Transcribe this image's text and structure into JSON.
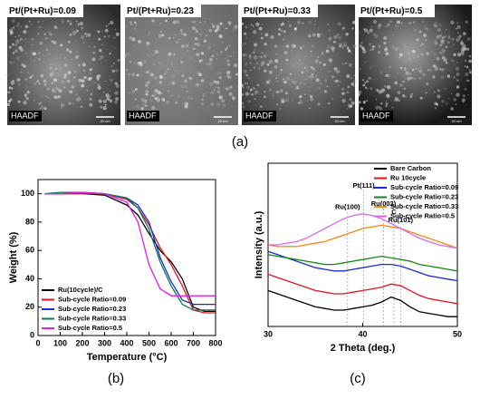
{
  "panel_a": {
    "images": [
      {
        "label": "Pt/(Pt+Ru)=0.09",
        "detector": "HAADF",
        "scale": "20 nm"
      },
      {
        "label": "Pt/(Pt+Ru)=0.23",
        "detector": "HAADF",
        "scale": "20 nm"
      },
      {
        "label": "Pt/(Pt+Ru)=0.33",
        "detector": "HAADF",
        "scale": "20 nm"
      },
      {
        "label": "Pt/(Pt+Ru)=0.5",
        "detector": "HAADF",
        "scale": "20 nm"
      }
    ],
    "caption": "(a)"
  },
  "chart_data": [
    {
      "type": "line",
      "caption": "(b)",
      "xlabel": "Temperature (°C)",
      "ylabel": "Weight (%)",
      "xlim": [
        0,
        800
      ],
      "xticks": [
        0,
        100,
        200,
        300,
        400,
        500,
        600,
        700,
        800
      ],
      "ylim": [
        0,
        110
      ],
      "yticks": [
        0,
        20,
        40,
        60,
        80,
        100
      ],
      "legend": "lower-left",
      "x": [
        30,
        100,
        200,
        300,
        400,
        450,
        500,
        550,
        600,
        650,
        700,
        750,
        800
      ],
      "series": [
        {
          "name": "Ru(10cycle)/C",
          "color": "#000000",
          "values": [
            100,
            100,
            100,
            99,
            92,
            85,
            72,
            60,
            52,
            40,
            20,
            17,
            17
          ]
        },
        {
          "name": "Sub-cycle Ratio=0.09",
          "color": "#e8141c",
          "values": [
            100,
            100,
            100,
            100,
            96,
            90,
            78,
            62,
            50,
            35,
            18,
            16,
            16
          ]
        },
        {
          "name": "Sub-cycle Ratio=0.23",
          "color": "#1b2ad6",
          "values": [
            100,
            100,
            101,
            100,
            97,
            92,
            80,
            55,
            38,
            25,
            22,
            22,
            22
          ]
        },
        {
          "name": "Sub-cycle Ratio=0.33",
          "color": "#0d7a5a",
          "values": [
            100,
            101,
            101,
            100,
            97,
            90,
            75,
            52,
            35,
            22,
            18,
            18,
            18
          ]
        },
        {
          "name": "Sub-cycle Ratio=0.5",
          "color": "#e81ce0",
          "values": [
            100,
            100,
            101,
            100,
            94,
            80,
            50,
            33,
            28,
            28,
            28,
            28,
            28
          ]
        }
      ]
    },
    {
      "type": "line",
      "caption": "(c)",
      "xlabel": "2 Theta (deg.)",
      "ylabel": "Intensity (a.u.)",
      "xlim": [
        30,
        50
      ],
      "xticks": [
        30,
        40,
        50
      ],
      "ylim": [
        0,
        100
      ],
      "legend": "upper-right",
      "x": [
        30,
        31,
        32,
        33,
        34,
        35,
        36,
        37,
        38,
        39,
        40,
        41,
        42,
        43,
        44,
        45,
        46,
        47,
        48,
        49,
        50
      ],
      "series": [
        {
          "name": "Bare Carbon",
          "color": "#000000",
          "values": [
            22,
            20,
            18,
            16,
            14,
            12,
            11,
            10,
            10,
            11,
            12,
            13,
            15,
            18,
            16,
            12,
            9,
            8,
            7,
            6,
            6
          ]
        },
        {
          "name": "Ru 10cycle",
          "color": "#e8141c",
          "values": [
            32,
            30,
            28,
            26,
            24,
            22,
            21,
            20,
            20,
            21,
            22,
            23,
            24,
            26,
            25,
            22,
            19,
            17,
            16,
            15,
            14
          ]
        },
        {
          "name": "Sub-cycle Ratio=0.09",
          "color": "#1b2ad6",
          "values": [
            46,
            44,
            42,
            40,
            38,
            36,
            35,
            34,
            34,
            35,
            36,
            37,
            38,
            38,
            37,
            35,
            33,
            31,
            30,
            29,
            28
          ]
        },
        {
          "name": "Sub-cycle Ratio=0.23",
          "color": "#128a12",
          "values": [
            44,
            43,
            42,
            41,
            40,
            39,
            38,
            38,
            39,
            40,
            41,
            42,
            43,
            42,
            41,
            40,
            38,
            37,
            36,
            35,
            34
          ]
        },
        {
          "name": "Sub-cycle Ratio=0.33",
          "color": "#f08a10",
          "values": [
            50,
            49,
            49,
            49,
            50,
            51,
            52,
            54,
            56,
            58,
            60,
            61,
            62,
            61,
            60,
            58,
            56,
            54,
            52,
            50,
            48
          ]
        },
        {
          "name": "Sub-cycle Ratio=0.5",
          "color": "#d86ae8",
          "values": [
            50,
            50,
            51,
            52,
            54,
            57,
            60,
            63,
            66,
            68,
            69,
            68,
            66,
            63,
            60,
            57,
            54,
            52,
            50,
            49,
            48
          ]
        }
      ],
      "annotations": [
        {
          "text": "Pt(111)",
          "x": 40.1,
          "y": 86
        },
        {
          "text": "Ru(100)",
          "x": 38.4,
          "y": 73
        },
        {
          "text": "Ru(002)",
          "x": 42.2,
          "y": 75
        },
        {
          "text": "C",
          "x": 43.3,
          "y": 70
        },
        {
          "text": "Ru(101)",
          "x": 44.0,
          "y": 65
        }
      ]
    }
  ]
}
